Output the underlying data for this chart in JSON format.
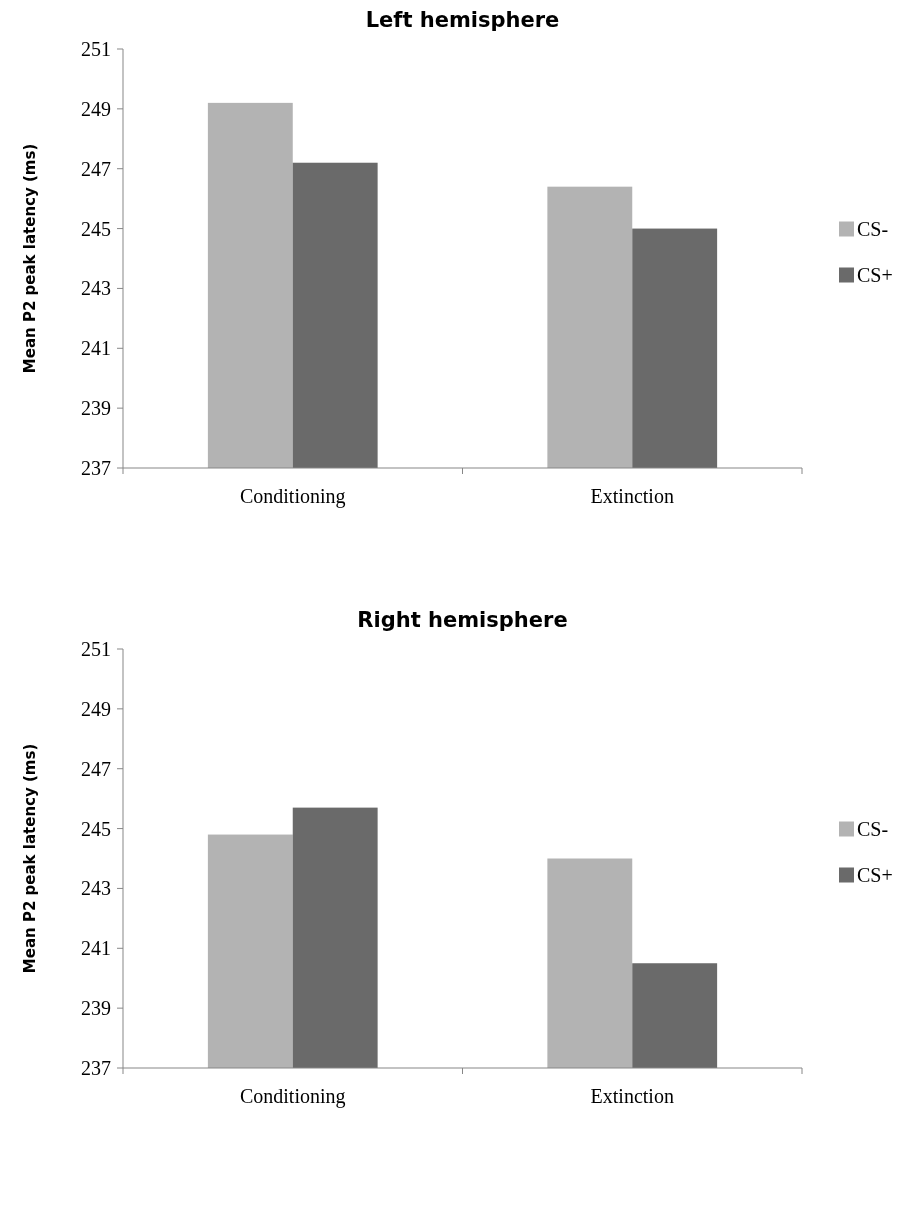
{
  "chart_data": [
    {
      "type": "bar",
      "title": "Left hemisphere",
      "ylabel": "Mean P2 peak latency (ms)",
      "categories": [
        "Conditioning",
        "Extinction"
      ],
      "series": [
        {
          "name": "CS-",
          "color": "#b3b3b3",
          "values": [
            249.2,
            246.4
          ]
        },
        {
          "name": "CS+",
          "color": "#6a6a6a",
          "values": [
            247.2,
            245.0
          ]
        }
      ],
      "ylim": [
        237,
        251
      ],
      "yticks": [
        237,
        239,
        241,
        243,
        245,
        247,
        249,
        251
      ],
      "grid": false,
      "legend": "right"
    },
    {
      "type": "bar",
      "title": "Right hemisphere",
      "ylabel": "Mean P2 peak latency (ms)",
      "categories": [
        "Conditioning",
        "Extinction"
      ],
      "series": [
        {
          "name": "CS-",
          "color": "#b3b3b3",
          "values": [
            244.8,
            244.0
          ]
        },
        {
          "name": "CS+",
          "color": "#6a6a6a",
          "values": [
            245.7,
            240.5
          ]
        }
      ],
      "ylim": [
        237,
        251
      ],
      "yticks": [
        237,
        239,
        241,
        243,
        245,
        247,
        249,
        251
      ],
      "grid": false,
      "legend": "right"
    }
  ]
}
